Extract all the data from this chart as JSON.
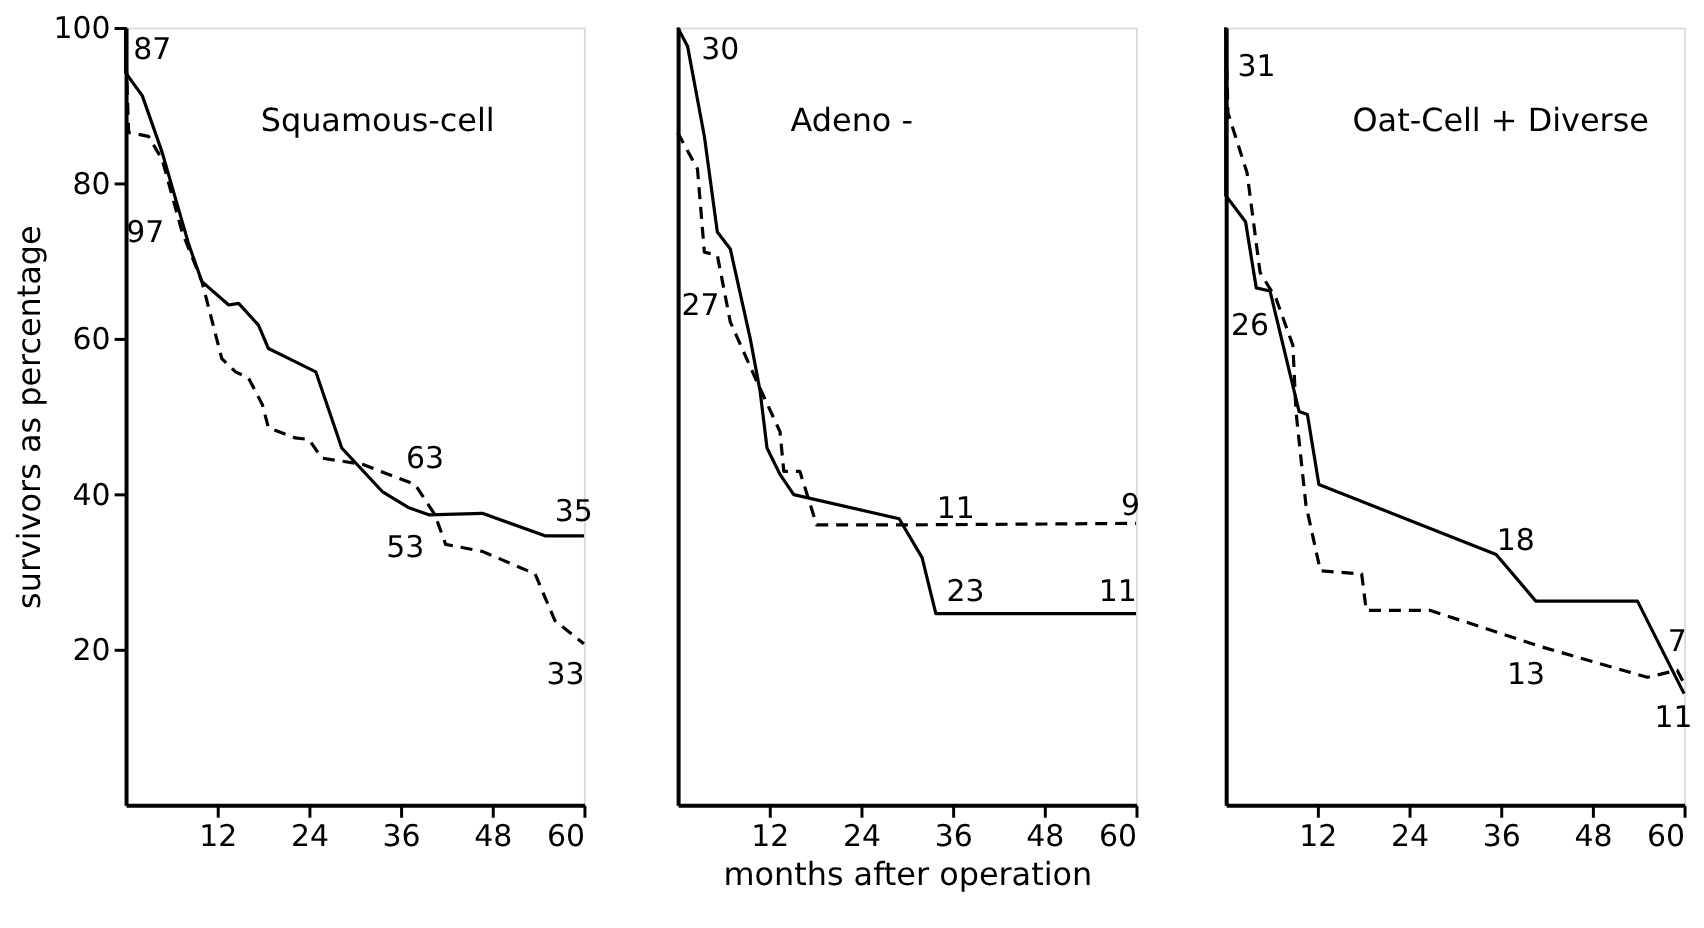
{
  "chart_data": [
    {
      "type": "line",
      "title": "Squamous-cell",
      "ylabel": "survivors as percentage",
      "xlim": [
        0,
        60
      ],
      "ylim": [
        0,
        100
      ],
      "xticks": [
        12,
        24,
        36,
        48,
        60
      ],
      "yticks": [
        20,
        40,
        60,
        80,
        100
      ],
      "grid": false,
      "series": [
        {
          "color": "#000000",
          "line_style": "solid",
          "x": [
            0,
            0,
            2.2,
            4.8,
            8.3,
            10,
            13.5,
            14.8,
            17.4,
            18.7,
            21.4,
            24.9,
            28.3,
            33.6,
            37.1,
            39.7,
            46.7,
            54.9,
            60
          ],
          "values": [
            100,
            94.2,
            91.2,
            83.9,
            72,
            67.3,
            64.3,
            64.5,
            61.7,
            58.7,
            57.4,
            55.7,
            45.9,
            40.3,
            38.2,
            37.3,
            37.5,
            34.6,
            34.6
          ]
        },
        {
          "color": "#000000",
          "line_style": "dashed",
          "x": [
            0,
            0.4,
            3,
            4.8,
            7.4,
            10,
            12.6,
            14.4,
            16.1,
            17.9,
            18.7,
            22.2,
            24,
            25.7,
            31,
            37.9,
            40.5,
            41.9,
            46.7,
            53.6,
            56.2,
            60
          ],
          "values": [
            98,
            86.5,
            86,
            83,
            73.7,
            67.3,
            57.4,
            55.7,
            54.9,
            51.5,
            48.5,
            47.2,
            47,
            44.6,
            43.8,
            41.2,
            37.3,
            33.5,
            32.6,
            29.7,
            23.7,
            20.7
          ]
        }
      ],
      "annotations": [
        "87",
        "97",
        "63",
        "53",
        "35",
        "33"
      ]
    },
    {
      "type": "line",
      "title": "Adeno -",
      "xlabel": "months after operation",
      "xlim": [
        0,
        60
      ],
      "ylim": [
        0,
        100
      ],
      "xticks": [
        12,
        24,
        36,
        48,
        60
      ],
      "tick_labels": "x",
      "grid": false,
      "series": [
        {
          "color": "#000000",
          "line_style": "solid",
          "x": [
            0,
            1.3,
            3.5,
            5.2,
            6.9,
            9.5,
            10.8,
            11.7,
            13.4,
            15.2,
            29,
            32,
            33.8,
            60
          ],
          "values": [
            100,
            97.6,
            86,
            73.7,
            71.5,
            60,
            53.2,
            45.9,
            42.5,
            39.9,
            36.8,
            31.8,
            24.6,
            24.6
          ]
        },
        {
          "color": "#000000",
          "line_style": "dashed",
          "x": [
            0,
            2.6,
            3.5,
            5.2,
            6.9,
            10.4,
            13.4,
            13.9,
            16,
            18.2,
            29,
            60
          ],
          "values": [
            86.5,
            81.8,
            71.1,
            70.7,
            62.1,
            54.4,
            48,
            42.9,
            42.9,
            36,
            36,
            36.2
          ]
        }
      ],
      "annotations": [
        "30",
        "27",
        "11",
        "9",
        "23",
        "11"
      ]
    },
    {
      "type": "line",
      "title": "Oat-Cell + Diverse",
      "xlim": [
        0,
        60
      ],
      "ylim": [
        0,
        100
      ],
      "xticks": [
        12,
        24,
        36,
        48,
        60
      ],
      "tick_labels": "x",
      "grid": false,
      "series": [
        {
          "color": "#000000",
          "line_style": "solid",
          "x": [
            0,
            0,
            2.6,
            4,
            5.8,
            9.6,
            10.7,
            12.2,
            35.4,
            40.6,
            53.9,
            60
          ],
          "values": [
            100,
            78.4,
            75,
            66.5,
            66.1,
            50.6,
            50.2,
            41.2,
            32.2,
            26.2,
            26.2,
            14.3
          ]
        },
        {
          "color": "#000000",
          "line_style": "dashed",
          "x": [
            0,
            0.3,
            2.8,
            4.5,
            6.6,
            8.8,
            9.2,
            10.5,
            12.4,
            17.8,
            18.4,
            26.8,
            41.4,
            55.2,
            59.1,
            60
          ],
          "values": [
            100,
            89,
            81.3,
            68.5,
            65.1,
            59.1,
            50.6,
            38.6,
            30.1,
            29.7,
            25,
            25,
            20.3,
            16.4,
            17.3,
            15.6
          ]
        }
      ],
      "annotations": [
        "31",
        "26",
        "18",
        "7",
        "13",
        "11"
      ]
    }
  ]
}
